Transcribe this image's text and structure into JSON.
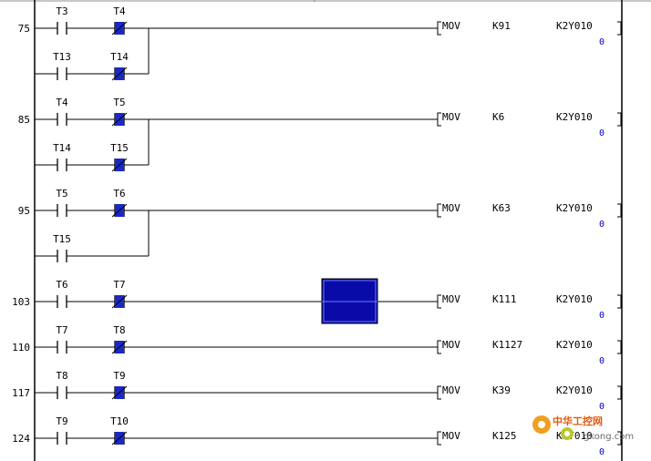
{
  "colors": {
    "rail": "#000000",
    "nc_fill": "#1a28c8",
    "selection_fill": "#0a0aa8",
    "value_text": "#0000c0",
    "watermark": "#e05a10"
  },
  "rungs": [
    {
      "step": "75",
      "contacts": [
        {
          "name": "T3",
          "type": "no"
        },
        {
          "name": "T4",
          "type": "nc"
        }
      ],
      "branch": [
        {
          "name": "T13",
          "type": "no"
        },
        {
          "name": "T14",
          "type": "nc"
        }
      ],
      "instruction": {
        "op": "MOV",
        "src": "K91",
        "dst": "K2Y010",
        "value": "0"
      }
    },
    {
      "step": "85",
      "contacts": [
        {
          "name": "T4",
          "type": "no"
        },
        {
          "name": "T5",
          "type": "nc"
        }
      ],
      "branch": [
        {
          "name": "T14",
          "type": "no"
        },
        {
          "name": "T15",
          "type": "nc"
        }
      ],
      "instruction": {
        "op": "MOV",
        "src": "K6",
        "dst": "K2Y010",
        "value": "0"
      }
    },
    {
      "step": "95",
      "contacts": [
        {
          "name": "T5",
          "type": "no"
        },
        {
          "name": "T6",
          "type": "nc"
        }
      ],
      "branch": [
        {
          "name": "T15",
          "type": "no"
        }
      ],
      "instruction": {
        "op": "MOV",
        "src": "K63",
        "dst": "K2Y010",
        "value": "0"
      }
    },
    {
      "step": "103",
      "contacts": [
        {
          "name": "T6",
          "type": "no"
        },
        {
          "name": "T7",
          "type": "nc"
        }
      ],
      "branch": [],
      "selected": true,
      "instruction": {
        "op": "MOV",
        "src": "K111",
        "dst": "K2Y010",
        "value": "0"
      }
    },
    {
      "step": "110",
      "contacts": [
        {
          "name": "T7",
          "type": "no"
        },
        {
          "name": "T8",
          "type": "nc"
        }
      ],
      "branch": [],
      "instruction": {
        "op": "MOV",
        "src": "K1127",
        "dst": "K2Y010",
        "value": "0"
      }
    },
    {
      "step": "117",
      "contacts": [
        {
          "name": "T8",
          "type": "no"
        },
        {
          "name": "T9",
          "type": "nc"
        }
      ],
      "branch": [],
      "instruction": {
        "op": "MOV",
        "src": "K39",
        "dst": "K2Y010",
        "value": "0"
      }
    },
    {
      "step": "124",
      "contacts": [
        {
          "name": "T9",
          "type": "no"
        },
        {
          "name": "T10",
          "type": "nc"
        }
      ],
      "branch": [],
      "instruction": {
        "op": "MOV",
        "src": "K125",
        "dst": "K2Y010",
        "value": "0"
      }
    }
  ],
  "watermark": {
    "text": "中华工控网",
    "url": "gkong.com",
    "icon": "gear-icon"
  }
}
